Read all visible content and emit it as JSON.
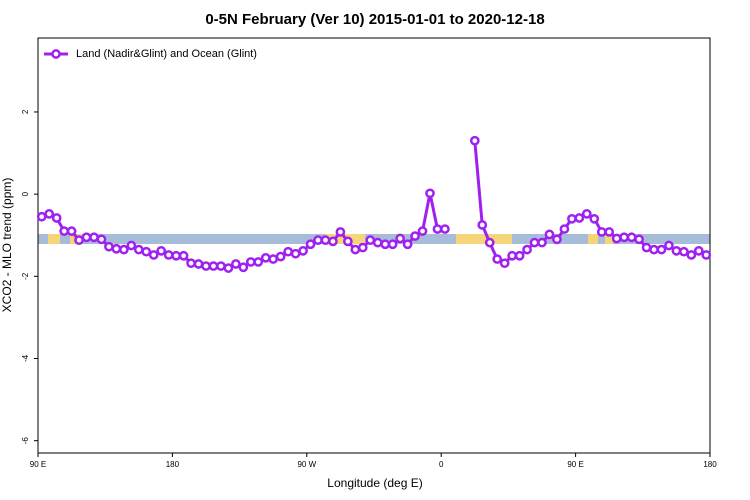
{
  "chart_data": {
    "type": "line",
    "title": "0-5N February (Ver 10)   2015-01-01 to 2020-12-18",
    "x_label": "Longitude (deg E)",
    "y_label": "XCO2 - MLO trend (ppm)",
    "x": [
      92.5,
      97.5,
      102.5,
      107.5,
      112.5,
      117.5,
      122.5,
      127.5,
      132.5,
      137.5,
      142.5,
      147.5,
      152.5,
      157.5,
      162.5,
      167.5,
      172.5,
      177.5,
      182.5,
      187.5,
      192.5,
      197.5,
      202.5,
      207.5,
      212.5,
      217.5,
      222.5,
      227.5,
      232.5,
      237.5,
      242.5,
      247.5,
      252.5,
      257.5,
      262.5,
      267.5,
      272.5,
      277.5,
      282.5,
      287.5,
      292.5,
      297.5,
      302.5,
      307.5,
      312.5,
      317.5,
      322.5,
      327.5,
      332.5,
      337.5,
      342.5,
      347.5,
      352.5,
      357.5,
      362.5,
      367.5,
      372.5,
      377.5,
      382.5,
      387.5,
      392.5,
      397.5,
      402.5,
      407.5,
      412.5,
      417.5,
      422.5,
      427.5,
      432.5,
      437.5,
      442.5,
      447.5,
      452.5,
      457.5,
      462.5,
      467.5,
      472.5,
      477.5,
      482.5,
      487.5,
      492.5,
      497.5,
      502.5,
      507.5,
      512.5,
      517.5,
      522.5,
      527.5,
      532.5,
      537.5
    ],
    "series": [
      {
        "name": "Land (Nadir&Glint) and Ocean (Glint)",
        "color": "#a020f0",
        "values": [
          -0.55,
          -0.48,
          -0.58,
          -0.9,
          -0.9,
          -1.12,
          -1.05,
          -1.05,
          -1.1,
          -1.28,
          -1.33,
          -1.35,
          -1.25,
          -1.35,
          -1.4,
          -1.48,
          -1.38,
          -1.48,
          -1.5,
          -1.5,
          -1.68,
          -1.7,
          -1.75,
          -1.75,
          -1.75,
          -1.8,
          -1.7,
          -1.78,
          -1.65,
          -1.65,
          -1.55,
          -1.58,
          -1.52,
          -1.4,
          -1.45,
          -1.38,
          -1.22,
          -1.12,
          -1.12,
          -1.15,
          -0.92,
          -1.15,
          -1.35,
          -1.3,
          -1.12,
          -1.18,
          -1.22,
          -1.22,
          -1.08,
          -1.22,
          -1.02,
          -0.9,
          0.02,
          -0.85,
          -0.85,
          null,
          null,
          null,
          1.3,
          -0.75,
          -1.18,
          -1.58,
          -1.68,
          -1.5,
          -1.5,
          -1.35,
          -1.18,
          -1.18,
          -0.98,
          -1.1,
          -0.85,
          -0.6,
          -0.58,
          -0.48,
          -0.6,
          -0.92,
          -0.92,
          -1.08,
          -1.05,
          -1.05,
          -1.1,
          -1.3,
          -1.35,
          -1.35,
          -1.25,
          -1.38,
          -1.4,
          -1.48,
          -1.38,
          -1.48
        ]
      }
    ],
    "xlim": [
      90,
      540
    ],
    "xticks": [
      {
        "value": 90,
        "label": "90 E"
      },
      180,
      {
        "value": 270,
        "label": "90 W"
      },
      {
        "value": 360,
        "label": "0"
      },
      {
        "value": 450,
        "label": "90 E"
      },
      {
        "value": 540,
        "label": "180"
      }
    ],
    "ylim": [
      -6.3,
      3.8
    ],
    "yticks": [
      2,
      0,
      -2,
      -4,
      -6
    ],
    "legend": "top-left"
  }
}
